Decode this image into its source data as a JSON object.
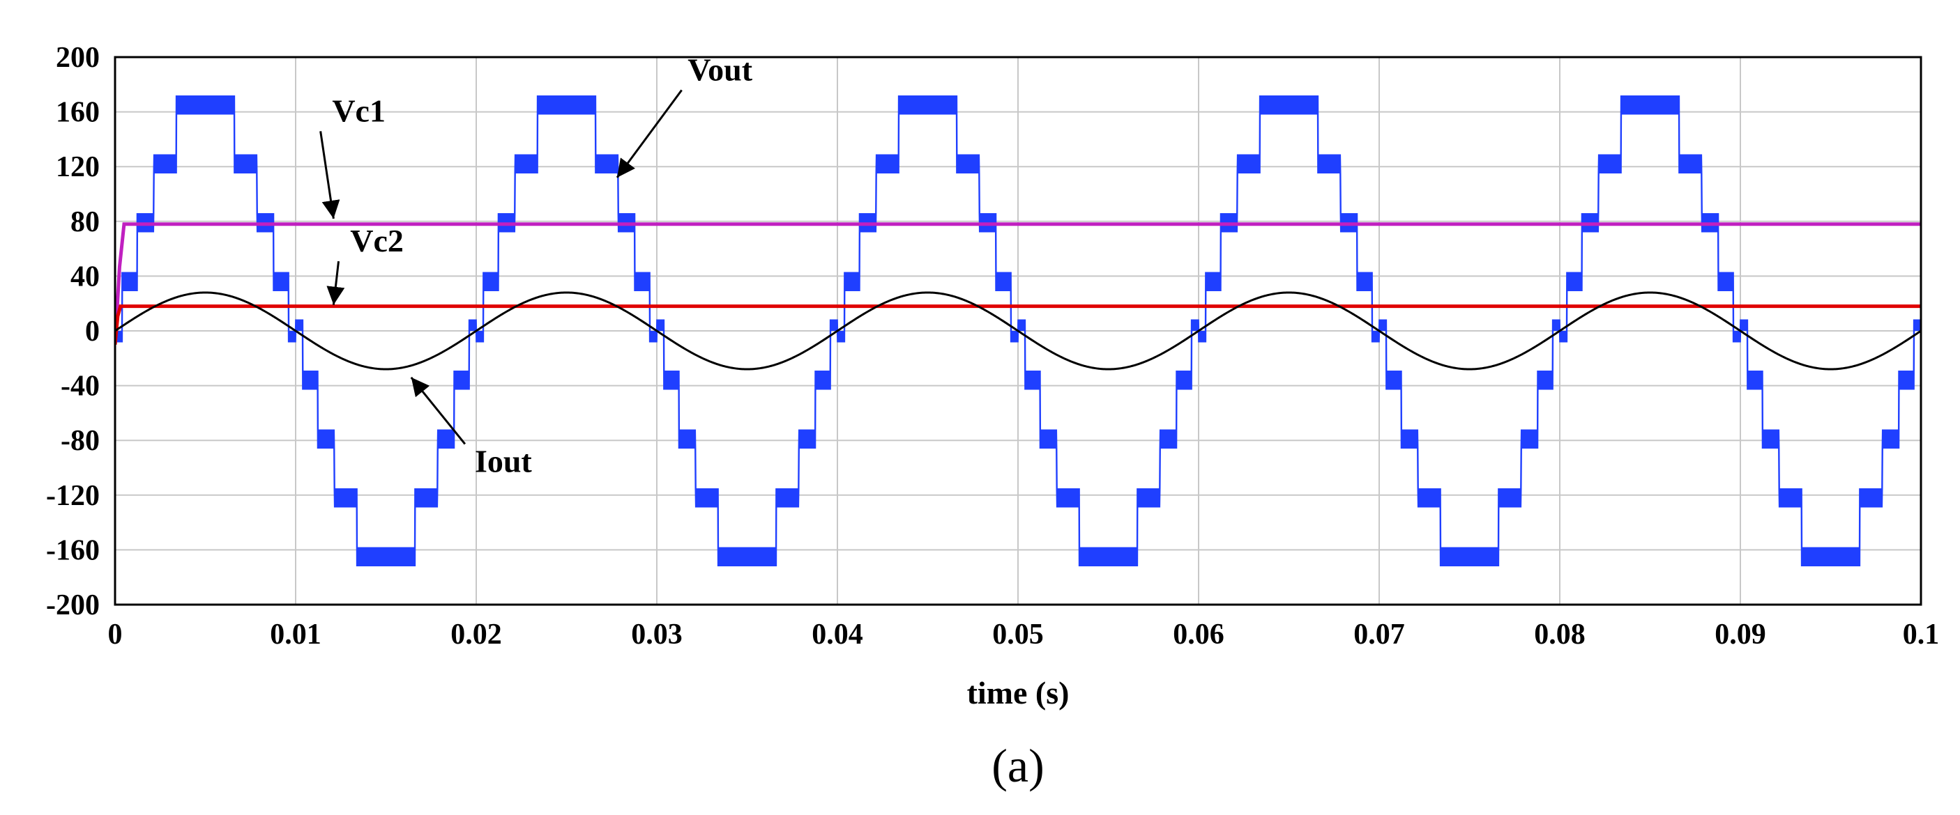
{
  "chart_data": {
    "type": "line",
    "title": "",
    "xlabel": "time (s)",
    "ylabel": "",
    "xlim": [
      0,
      0.1
    ],
    "ylim": [
      -200,
      200
    ],
    "grid": true,
    "caption": "(a)",
    "x_ticks": [
      0,
      0.01,
      0.02,
      0.03,
      0.04,
      0.05,
      0.06,
      0.07,
      0.08,
      0.09,
      0.1
    ],
    "x_tick_labels": [
      "0",
      "0.01",
      "0.02",
      "0.03",
      "0.04",
      "0.05",
      "0.06",
      "0.07",
      "0.08",
      "0.09",
      "0.1"
    ],
    "y_ticks": [
      200,
      160,
      120,
      80,
      40,
      0,
      -40,
      -80,
      -120,
      -160,
      -200
    ],
    "y_tick_labels": [
      "200",
      "160",
      "120",
      "80",
      "40",
      "0",
      "-40",
      "-80",
      "-120",
      "-160",
      "-200"
    ],
    "series": [
      {
        "name": "Vout",
        "color": "#1f3fff",
        "kind": "staircase-sine",
        "amplitude": 172,
        "frequency_hz": 50,
        "levels": 9,
        "ripple": 14
      },
      {
        "name": "Vc1",
        "color": "#c020c0",
        "kind": "step-constant",
        "value": 78,
        "rise_time_s": 0.0005
      },
      {
        "name": "Vc2",
        "color": "#e00000",
        "kind": "step-constant",
        "value": 18,
        "rise_time_s": 0.0003
      },
      {
        "name": "Iout",
        "color": "#000000",
        "kind": "sine",
        "amplitude": 28,
        "frequency_hz": 50
      }
    ],
    "annotations": [
      {
        "label": "Vc1",
        "series": "Vc1",
        "text_x": 0.0135,
        "text_y": 153,
        "arrow_to_x": 0.0121,
        "arrow_to_y": 82
      },
      {
        "label": "Vout",
        "series": "Vout",
        "text_x": 0.0335,
        "text_y": 183,
        "arrow_to_x": 0.0278,
        "arrow_to_y": 112
      },
      {
        "label": "Vc2",
        "series": "Vc2",
        "text_x": 0.0145,
        "text_y": 58,
        "arrow_to_x": 0.0121,
        "arrow_to_y": 19
      },
      {
        "label": "Iout",
        "series": "Iout",
        "text_x": 0.0215,
        "text_y": -103,
        "arrow_to_x": 0.0164,
        "arrow_to_y": -34
      }
    ]
  }
}
